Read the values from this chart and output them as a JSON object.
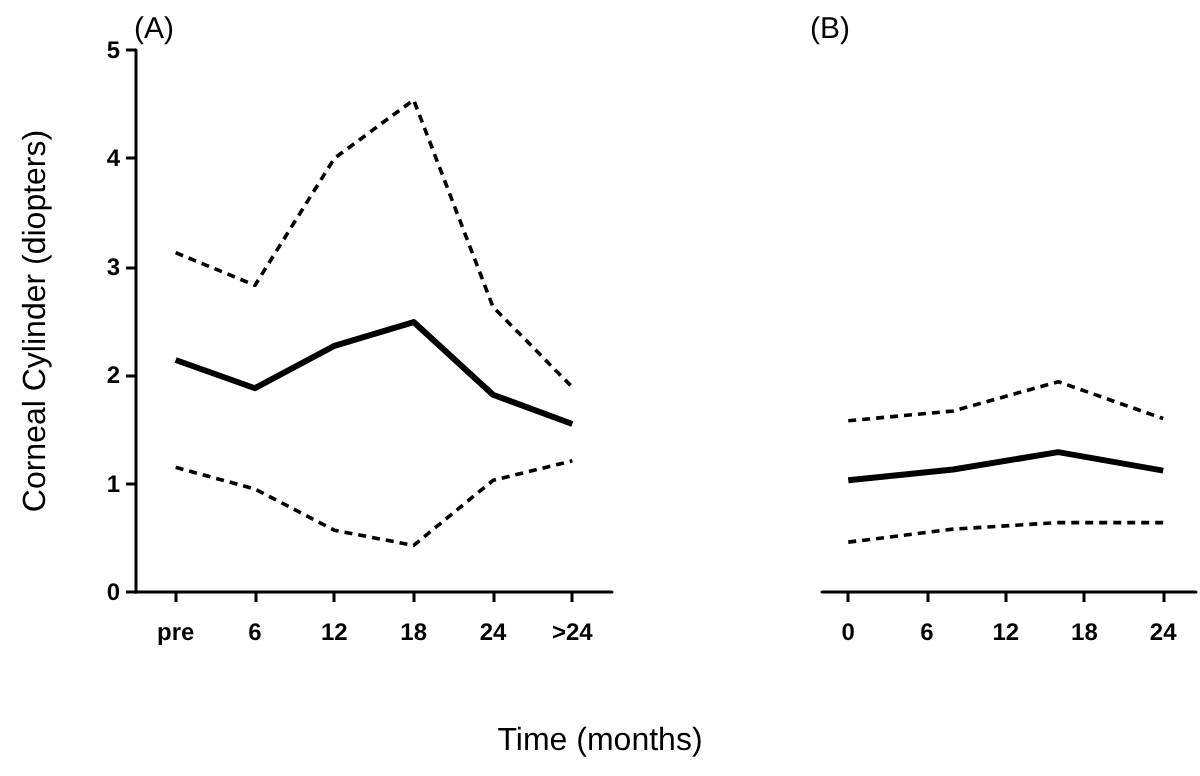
{
  "chart_data": [
    {
      "type": "line",
      "title": "(A)",
      "ylabel": "Corneal Cylinder (diopters)",
      "xlabel": "Time (months)",
      "categories": [
        "pre",
        "6",
        "12",
        "18",
        "24",
        ">24"
      ],
      "ylim": [
        0,
        5
      ],
      "yticks": [
        0,
        1,
        2,
        3,
        4,
        5
      ],
      "grid": false,
      "marker": "none",
      "series": [
        {
          "color": "#000000",
          "line_style": "dashed",
          "values": [
            3.13,
            2.83,
            4.0,
            4.54,
            2.63,
            1.89
          ]
        },
        {
          "color": "#000000",
          "line_style": "solid",
          "values": [
            2.14,
            1.88,
            2.27,
            2.49,
            1.82,
            1.55
          ]
        },
        {
          "color": "#000000",
          "line_style": "dashed",
          "values": [
            1.15,
            0.95,
            0.57,
            0.43,
            1.03,
            1.21
          ]
        }
      ]
    },
    {
      "type": "line",
      "title": "(B)",
      "x": [
        0,
        8,
        16,
        24
      ],
      "xlim": [
        -2,
        26.5
      ],
      "xticks": [
        0,
        6,
        12,
        18,
        24
      ],
      "ylim": [
        0,
        5
      ],
      "tick_labels": "x",
      "grid": false,
      "marker": "none",
      "series": [
        {
          "color": "#000000",
          "line_style": "dashed",
          "values": [
            1.58,
            1.67,
            1.94,
            1.6
          ]
        },
        {
          "color": "#000000",
          "line_style": "solid",
          "values": [
            1.03,
            1.13,
            1.29,
            1.12
          ]
        },
        {
          "color": "#000000",
          "line_style": "dashed",
          "values": [
            0.46,
            0.58,
            0.64,
            0.64
          ]
        }
      ]
    }
  ]
}
